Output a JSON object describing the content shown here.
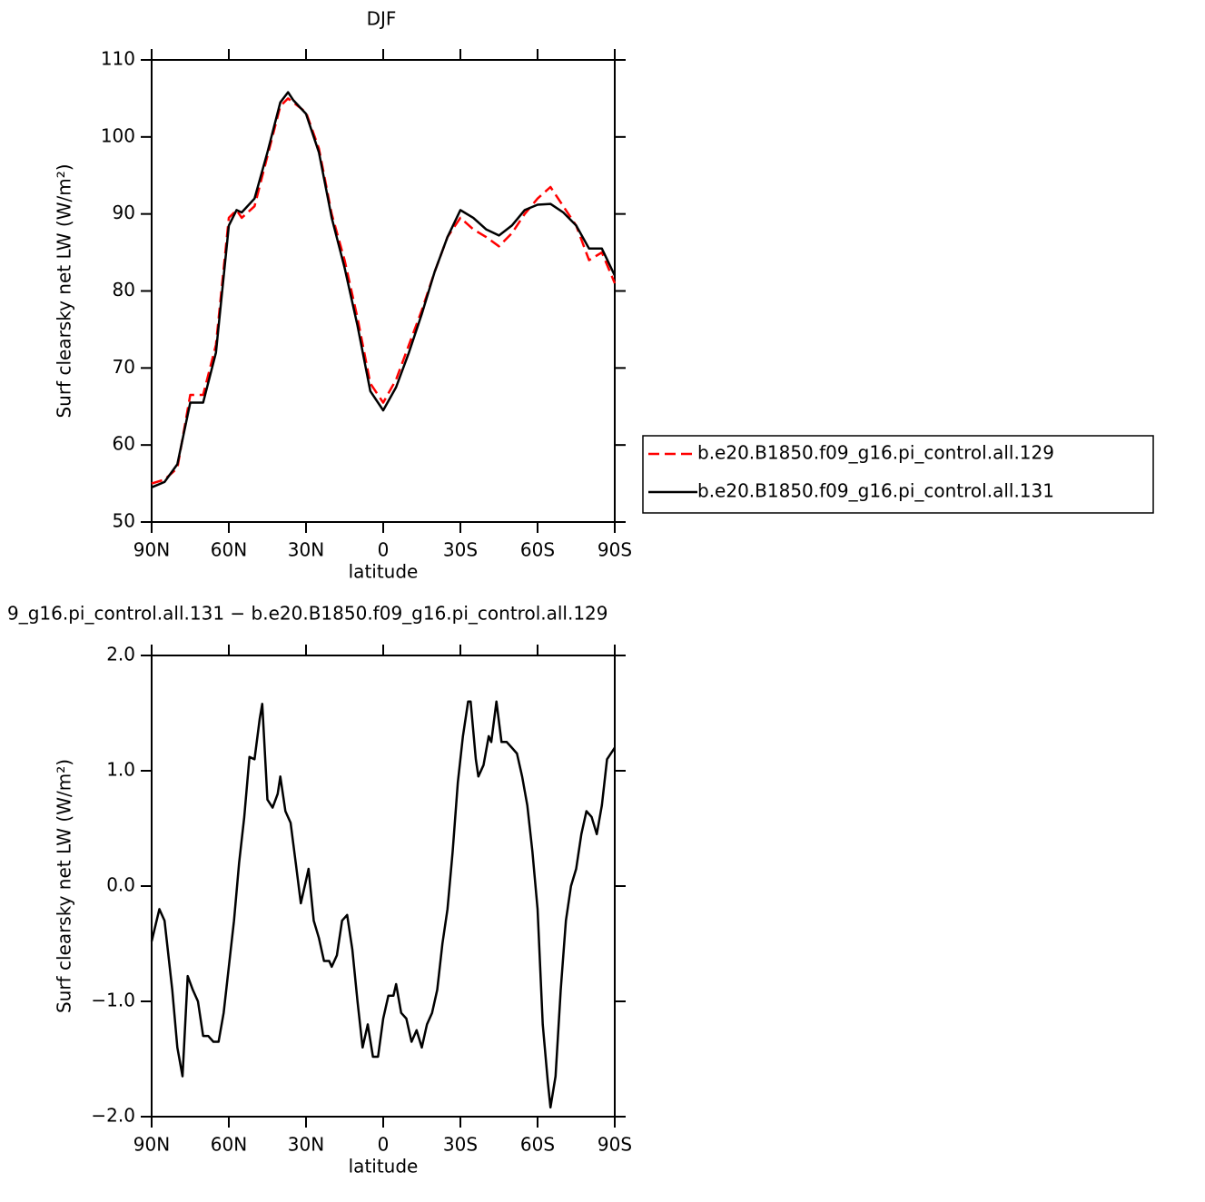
{
  "chart_data": [
    {
      "type": "line",
      "title": "DJF",
      "xlabel": "latitude",
      "ylabel": "Surf clearsky net LW (W/m²)",
      "x": [
        90,
        85,
        80,
        75,
        70,
        65,
        60,
        57,
        55,
        50,
        45,
        40,
        37,
        35,
        30,
        25,
        20,
        15,
        10,
        5,
        0,
        -5,
        -10,
        -15,
        -20,
        -25,
        -30,
        -35,
        -40,
        -45,
        -50,
        -55,
        -60,
        -65,
        -70,
        -75,
        -80,
        -85,
        -90
      ],
      "series": [
        {
          "name": "b.e20.B1850.f09_g16.pi_control.all.129",
          "color": "#ff0000",
          "line_style": "dashed",
          "values": [
            55,
            55.5,
            57,
            66.5,
            66.5,
            73,
            89.5,
            90.5,
            89.5,
            91,
            97.5,
            104,
            105,
            104.5,
            103.2,
            98.5,
            90,
            84,
            76.5,
            68,
            65.5,
            68.5,
            73,
            77.5,
            82.5,
            87,
            89.5,
            88,
            87,
            85.8,
            87.5,
            90,
            92,
            93.5,
            91,
            88.5,
            84,
            85,
            81
          ]
        },
        {
          "name": "b.e20.B1850.f09_g16.pi_control.all.131",
          "color": "#000000",
          "line_style": "solid",
          "values": [
            54.5,
            55.2,
            57.5,
            65.5,
            65.5,
            72,
            88.5,
            90.5,
            90.2,
            92,
            98,
            104.5,
            105.8,
            104.8,
            103,
            98,
            89.5,
            83,
            75.5,
            67,
            64.5,
            67.5,
            72,
            77,
            82.5,
            87,
            90.5,
            89.5,
            88,
            87.2,
            88.5,
            90.5,
            91.2,
            91.3,
            90.2,
            88.5,
            85.5,
            85.5,
            82
          ]
        }
      ],
      "xlim": [
        90,
        -90
      ],
      "xticks": [
        {
          "value": 90,
          "label": "90N"
        },
        {
          "value": 60,
          "label": "60N"
        },
        {
          "value": 30,
          "label": "30N"
        },
        0,
        {
          "value": -30,
          "label": "30S"
        },
        {
          "value": -60,
          "label": "60S"
        },
        {
          "value": -90,
          "label": "90S"
        }
      ],
      "ylim": [
        50,
        110
      ],
      "yticks": [
        50,
        60,
        70,
        80,
        90,
        100,
        110
      ],
      "legend": "right"
    },
    {
      "type": "line",
      "title": "9_g16.pi_control.all.131 − b.e20.B1850.f09_g16.pi_control.all.129",
      "xlabel": "latitude",
      "ylabel": "Surf clearsky net LW (W/m²)",
      "x": [
        90,
        87,
        85,
        82,
        80,
        78,
        76,
        74,
        72,
        70,
        68,
        66,
        64,
        62,
        60,
        58,
        56,
        54,
        52,
        50,
        48,
        47,
        45,
        43,
        41,
        40,
        38,
        36,
        34,
        32,
        30,
        29,
        27,
        25,
        23,
        21,
        20,
        18,
        16,
        14,
        12,
        10,
        8,
        6,
        4,
        2,
        0,
        -2,
        -4,
        -5,
        -7,
        -9,
        -11,
        -13,
        -15,
        -17,
        -19,
        -21,
        -23,
        -25,
        -27,
        -29,
        -31,
        -33,
        -34,
        -36,
        -37,
        -39,
        -41,
        -42,
        -44,
        -46,
        -48,
        -50,
        -52,
        -54,
        -56,
        -58,
        -60,
        -62,
        -64,
        -65,
        -67,
        -69,
        -71,
        -73,
        -75,
        -77,
        -79,
        -81,
        -83,
        -85,
        -87,
        -90
      ],
      "values": [
        -0.48,
        -0.2,
        -0.3,
        -0.9,
        -1.4,
        -1.65,
        -0.78,
        -0.9,
        -1.0,
        -1.3,
        -1.3,
        -1.35,
        -1.35,
        -1.1,
        -0.7,
        -0.3,
        0.2,
        0.6,
        1.12,
        1.1,
        1.45,
        1.58,
        0.75,
        0.68,
        0.8,
        0.95,
        0.65,
        0.55,
        0.2,
        -0.15,
        0.05,
        0.15,
        -0.3,
        -0.45,
        -0.65,
        -0.65,
        -0.7,
        -0.6,
        -0.3,
        -0.25,
        -0.55,
        -1.0,
        -1.4,
        -1.2,
        -1.48,
        -1.48,
        -1.15,
        -0.95,
        -0.95,
        -0.85,
        -1.1,
        -1.15,
        -1.35,
        -1.25,
        -1.4,
        -1.2,
        -1.1,
        -0.9,
        -0.5,
        -0.2,
        0.3,
        0.9,
        1.3,
        1.6,
        1.6,
        1.1,
        0.95,
        1.05,
        1.3,
        1.25,
        1.6,
        1.25,
        1.25,
        1.2,
        1.15,
        0.95,
        0.7,
        0.3,
        -0.2,
        -1.2,
        -1.7,
        -1.92,
        -1.65,
        -0.9,
        -0.3,
        0.0,
        0.15,
        0.45,
        0.65,
        0.6,
        0.45,
        0.7,
        1.1,
        1.2
      ],
      "color": "#000000",
      "xlim": [
        90,
        -90
      ],
      "xticks": [
        {
          "value": 90,
          "label": "90N"
        },
        {
          "value": 60,
          "label": "60N"
        },
        {
          "value": 30,
          "label": "30N"
        },
        0,
        {
          "value": -30,
          "label": "30S"
        },
        {
          "value": -60,
          "label": "60S"
        },
        {
          "value": -90,
          "label": "90S"
        }
      ],
      "ylim": [
        -2.0,
        2.0
      ],
      "yticks": [
        {
          "value": -2.0,
          "label": "−2.0"
        },
        {
          "value": -1.0,
          "label": "−1.0"
        },
        {
          "value": 0.0,
          "label": "0.0"
        },
        {
          "value": 1.0,
          "label": "1.0"
        },
        {
          "value": 2.0,
          "label": "2.0"
        }
      ]
    }
  ]
}
